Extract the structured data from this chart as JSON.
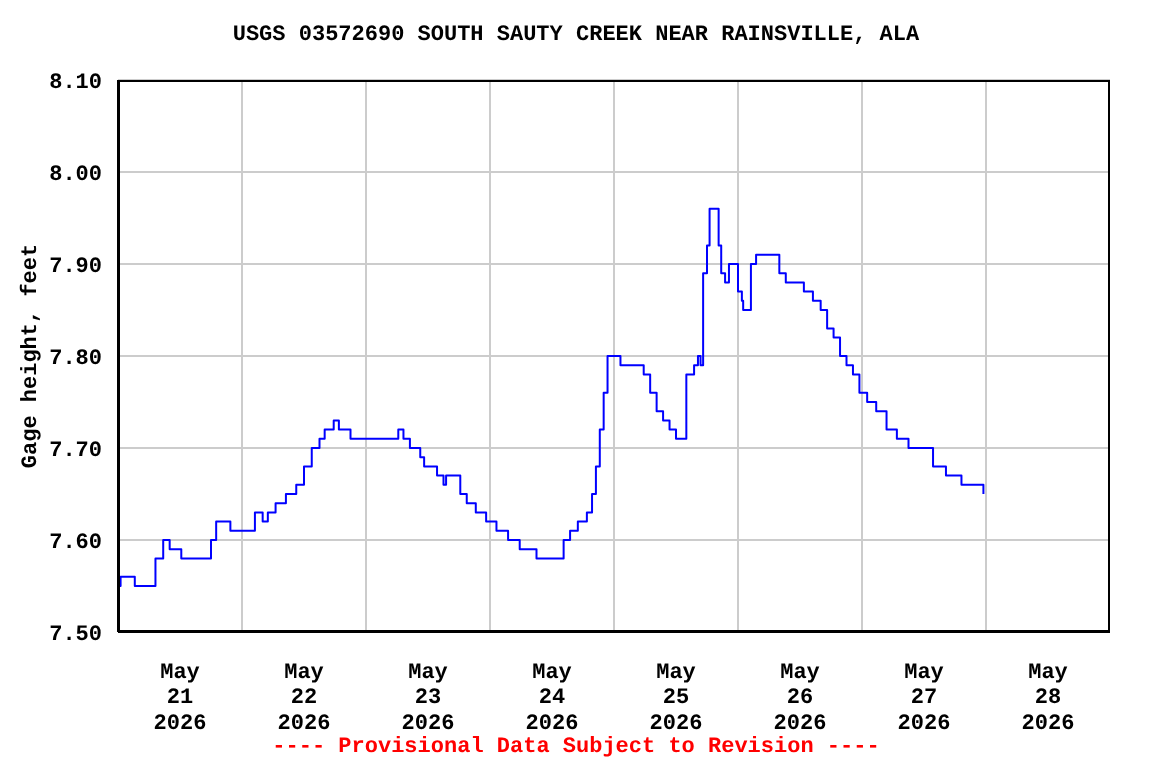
{
  "chart_data": {
    "type": "step",
    "title": "USGS 03572690 SOUTH SAUTY CREEK NEAR RAINSVILLE, ALA",
    "ylabel": "Gage height, feet",
    "annotations": [
      "---- Provisional Data Subject to Revision ----"
    ],
    "x": [
      "2026-05-21T00:00",
      "2026-05-21T00:30",
      "2026-05-21T03:00",
      "2026-05-21T03:15",
      "2026-05-21T06:30",
      "2026-05-21T07:15",
      "2026-05-21T08:45",
      "2026-05-21T09:45",
      "2026-05-21T10:00",
      "2026-05-21T12:15",
      "2026-05-21T17:15",
      "2026-05-21T18:00",
      "2026-05-21T19:00",
      "2026-05-21T21:30",
      "2026-05-21T21:45",
      "2026-05-22T02:00",
      "2026-05-22T02:30",
      "2026-05-22T03:30",
      "2026-05-22T04:00",
      "2026-05-22T05:00",
      "2026-05-22T06:30",
      "2026-05-22T08:30",
      "2026-05-22T10:30",
      "2026-05-22T12:00",
      "2026-05-22T13:30",
      "2026-05-22T15:00",
      "2026-05-22T16:00",
      "2026-05-22T17:45",
      "2026-05-22T18:45",
      "2026-05-22T21:00",
      "2026-05-23T05:15",
      "2026-05-23T06:15",
      "2026-05-23T07:15",
      "2026-05-23T08:30",
      "2026-05-23T10:30",
      "2026-05-23T11:15",
      "2026-05-23T13:45",
      "2026-05-23T15:00",
      "2026-05-23T15:30",
      "2026-05-23T17:15",
      "2026-05-23T18:15",
      "2026-05-23T19:30",
      "2026-05-23T21:15",
      "2026-05-23T23:15",
      "2026-05-24T01:15",
      "2026-05-24T03:30",
      "2026-05-24T05:45",
      "2026-05-24T09:00",
      "2026-05-24T13:15",
      "2026-05-24T14:15",
      "2026-05-24T15:30",
      "2026-05-24T17:00",
      "2026-05-24T18:45",
      "2026-05-24T19:45",
      "2026-05-24T20:30",
      "2026-05-24T21:15",
      "2026-05-24T22:00",
      "2026-05-24T22:45",
      "2026-05-25T00:30",
      "2026-05-25T01:15",
      "2026-05-25T04:30",
      "2026-05-25T05:45",
      "2026-05-25T07:00",
      "2026-05-25T08:15",
      "2026-05-25T09:30",
      "2026-05-25T10:45",
      "2026-05-25T12:00",
      "2026-05-25T13:00",
      "2026-05-25T14:00",
      "2026-05-25T15:30",
      "2026-05-25T16:15",
      "2026-05-25T16:45",
      "2026-05-25T17:15",
      "2026-05-25T18:00",
      "2026-05-25T18:30",
      "2026-05-25T19:30",
      "2026-05-25T20:15",
      "2026-05-25T20:45",
      "2026-05-25T21:30",
      "2026-05-25T22:15",
      "2026-05-25T23:00",
      "2026-05-26T00:00",
      "2026-05-26T00:45",
      "2026-05-26T01:00",
      "2026-05-26T02:00",
      "2026-05-26T02:30",
      "2026-05-26T03:30",
      "2026-05-26T07:00",
      "2026-05-26T08:00",
      "2026-05-26T09:15",
      "2026-05-26T12:00",
      "2026-05-26T12:45",
      "2026-05-26T14:30",
      "2026-05-26T16:00",
      "2026-05-26T17:15",
      "2026-05-26T18:30",
      "2026-05-26T19:45",
      "2026-05-26T21:00",
      "2026-05-26T22:15",
      "2026-05-26T23:30",
      "2026-05-27T01:00",
      "2026-05-27T02:45",
      "2026-05-27T04:45",
      "2026-05-27T06:45",
      "2026-05-27T09:00",
      "2026-05-27T12:00",
      "2026-05-27T13:45",
      "2026-05-27T16:15",
      "2026-05-27T19:15",
      "2026-05-27T22:30",
      "2026-05-27T23:30"
    ],
    "series": [
      {
        "color": "#0000ff",
        "values": [
          7.55,
          7.56,
          7.56,
          7.55,
          7.55,
          7.58,
          7.6,
          7.6,
          7.59,
          7.58,
          7.58,
          7.6,
          7.62,
          7.62,
          7.61,
          7.61,
          7.63,
          7.63,
          7.62,
          7.63,
          7.64,
          7.65,
          7.66,
          7.68,
          7.7,
          7.71,
          7.72,
          7.73,
          7.72,
          7.71,
          7.71,
          7.72,
          7.71,
          7.7,
          7.69,
          7.68,
          7.67,
          7.66,
          7.67,
          7.67,
          7.65,
          7.64,
          7.63,
          7.62,
          7.61,
          7.6,
          7.59,
          7.58,
          7.58,
          7.6,
          7.61,
          7.62,
          7.63,
          7.65,
          7.68,
          7.72,
          7.76,
          7.8,
          7.8,
          7.79,
          7.79,
          7.78,
          7.76,
          7.74,
          7.73,
          7.72,
          7.71,
          7.71,
          7.78,
          7.79,
          7.8,
          7.79,
          7.89,
          7.92,
          7.96,
          7.96,
          7.92,
          7.89,
          7.88,
          7.9,
          7.9,
          7.87,
          7.86,
          7.85,
          7.85,
          7.9,
          7.91,
          7.91,
          7.89,
          7.88,
          7.88,
          7.87,
          7.86,
          7.85,
          7.83,
          7.82,
          7.8,
          7.79,
          7.78,
          7.76,
          7.75,
          7.74,
          7.72,
          7.71,
          7.7,
          7.7,
          7.68,
          7.67,
          7.66,
          7.66,
          7.65
        ]
      }
    ],
    "xlim": [
      "2026-05-21T00:00",
      "2026-05-29T00:00"
    ],
    "xticks": [
      {
        "value": "2026-05-21T12:00",
        "label": "May 21 2026"
      },
      {
        "value": "2026-05-22T00:00",
        "label": null
      },
      {
        "value": "2026-05-22T12:00",
        "label": "May 22 2026"
      },
      {
        "value": "2026-05-23T00:00",
        "label": null
      },
      {
        "value": "2026-05-23T12:00",
        "label": "May 23 2026"
      },
      {
        "value": "2026-05-24T00:00",
        "label": null
      },
      {
        "value": "2026-05-24T12:00",
        "label": "May 24 2026"
      },
      {
        "value": "2026-05-25T00:00",
        "label": null
      },
      {
        "value": "2026-05-25T12:00",
        "label": "May 25 2026"
      },
      {
        "value": "2026-05-26T00:00",
        "label": null
      },
      {
        "value": "2026-05-26T12:00",
        "label": "May 26 2026"
      },
      {
        "value": "2026-05-27T00:00",
        "label": null
      },
      {
        "value": "2026-05-27T12:00",
        "label": "May 27 2026"
      },
      {
        "value": "2026-05-28T00:00",
        "label": null
      },
      {
        "value": "2026-05-28T12:00",
        "label": "May 28 2026"
      }
    ],
    "ylim": [
      7.5,
      8.1
    ],
    "yticks": [
      {
        "value": 7.5,
        "label": "7.50"
      },
      {
        "value": 7.6,
        "label": "7.60"
      },
      {
        "value": 7.7,
        "label": "7.70"
      },
      {
        "value": 7.8,
        "label": "7.80"
      },
      {
        "value": 7.9,
        "label": "7.90"
      },
      {
        "value": 8.0,
        "label": "8.00"
      },
      {
        "value": 8.1,
        "label": "8.10"
      }
    ],
    "grid": true
  }
}
